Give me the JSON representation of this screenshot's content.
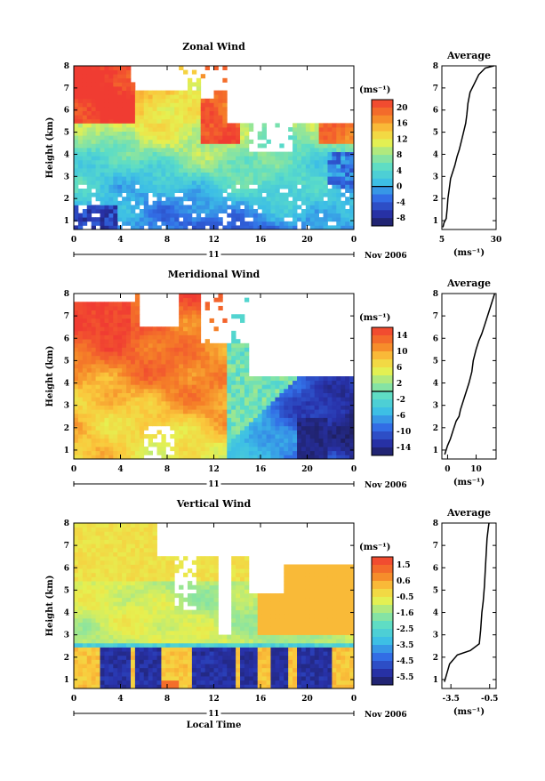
{
  "chart_data": [
    {
      "type": "heatmap",
      "title": "Zonal Wind",
      "ylabel": "Height (km)",
      "xticks": [
        "0",
        "4",
        "8",
        "12",
        "16",
        "20",
        "0"
      ],
      "yticks": [
        "1",
        "2",
        "3",
        "4",
        "5",
        "6",
        "7",
        "8"
      ],
      "ylim": [
        0.6,
        8
      ],
      "xlim": [
        0,
        24
      ],
      "date_day": "11",
      "date_label": "Nov 2006",
      "colorbar": {
        "unit": "(ms⁻¹)",
        "ticks": [
          "20",
          "16",
          "12",
          "8",
          "4",
          "0",
          "-4",
          "-8"
        ],
        "vmin": -10,
        "vmax": 22,
        "zero_line": 0
      },
      "profile": {
        "title": "Average",
        "xlabel": "(ms⁻¹)",
        "xticks": [
          "5",
          "30"
        ],
        "xlim": [
          5,
          30
        ],
        "ylim": [
          0.6,
          8
        ],
        "yticks": [
          "1",
          "2",
          "3",
          "4",
          "5",
          "6",
          "7",
          "8"
        ],
        "points": [
          [
            5.5,
            0.7
          ],
          [
            6,
            0.9
          ],
          [
            7,
            1.1
          ],
          [
            7.5,
            1.6
          ],
          [
            7.8,
            2.0
          ],
          [
            8.5,
            2.5
          ],
          [
            9,
            2.9
          ],
          [
            10,
            3.2
          ],
          [
            11,
            3.5
          ],
          [
            12,
            3.9
          ],
          [
            13,
            4.2
          ],
          [
            14,
            4.6
          ],
          [
            15,
            5.0
          ],
          [
            16,
            5.4
          ],
          [
            16.5,
            5.8
          ],
          [
            17,
            6.3
          ],
          [
            18,
            6.8
          ],
          [
            20,
            7.2
          ],
          [
            22,
            7.6
          ],
          [
            25,
            7.9
          ],
          [
            29,
            8.0
          ]
        ]
      }
    },
    {
      "type": "heatmap",
      "title": "Meridional Wind",
      "ylabel": "Height (km)",
      "xticks": [
        "0",
        "4",
        "8",
        "12",
        "16",
        "20",
        "0"
      ],
      "yticks": [
        "1",
        "2",
        "3",
        "4",
        "5",
        "6",
        "7",
        "8"
      ],
      "ylim": [
        0.6,
        8
      ],
      "xlim": [
        0,
        24
      ],
      "date_day": "11",
      "date_label": "Nov 2006",
      "colorbar": {
        "unit": "(ms⁻¹)",
        "ticks": [
          "14",
          "10",
          "6",
          "2",
          "-2",
          "-6",
          "-10",
          "-14"
        ],
        "vmin": -16,
        "vmax": 16,
        "zero_line": 0
      },
      "profile": {
        "title": "Average",
        "xlabel": "(ms⁻¹)",
        "xticks": [
          "0",
          "10"
        ],
        "xlim": [
          -2,
          17
        ],
        "ylim": [
          0.6,
          8
        ],
        "yticks": [
          "1",
          "2",
          "3",
          "4",
          "5",
          "6",
          "7",
          "8"
        ],
        "points": [
          [
            -1,
            0.8
          ],
          [
            0,
            1.2
          ],
          [
            1,
            1.5
          ],
          [
            2,
            1.9
          ],
          [
            3,
            2.3
          ],
          [
            4,
            2.5
          ],
          [
            4.5,
            2.8
          ],
          [
            5.5,
            3.2
          ],
          [
            6.5,
            3.6
          ],
          [
            7.5,
            4.0
          ],
          [
            8.5,
            4.5
          ],
          [
            9,
            5.0
          ],
          [
            10,
            5.5
          ],
          [
            11,
            5.9
          ],
          [
            12,
            6.2
          ],
          [
            13,
            6.6
          ],
          [
            14,
            7.0
          ],
          [
            15,
            7.4
          ],
          [
            16,
            7.8
          ],
          [
            16.5,
            8.0
          ]
        ]
      }
    },
    {
      "type": "heatmap",
      "title": "Vertical Wind",
      "ylabel": "Height (km)",
      "xlabel": "Local Time",
      "xticks": [
        "0",
        "4",
        "8",
        "12",
        "16",
        "20",
        "0"
      ],
      "yticks": [
        "1",
        "2",
        "3",
        "4",
        "5",
        "6",
        "7",
        "8"
      ],
      "ylim": [
        0.6,
        8
      ],
      "xlim": [
        0,
        24
      ],
      "date_day": "11",
      "date_label": "Nov 2006",
      "colorbar": {
        "unit": "(ms⁻¹)",
        "ticks": [
          "1.5",
          "0.6",
          "-0.5",
          "-1.6",
          "-2.5",
          "-3.5",
          "-4.5",
          "-5.5"
        ],
        "vmin": -6,
        "vmax": 2,
        "zero_line": null
      },
      "profile": {
        "title": "Average",
        "xlabel": "(ms⁻¹)",
        "xticks": [
          "-3.5",
          "-0.5"
        ],
        "xlim": [
          -4.2,
          0
        ],
        "ylim": [
          0.6,
          8
        ],
        "yticks": [
          "1",
          "2",
          "3",
          "4",
          "5",
          "6",
          "7",
          "8"
        ],
        "points": [
          [
            -4.0,
            0.9
          ],
          [
            -3.8,
            1.3
          ],
          [
            -3.6,
            1.7
          ],
          [
            -3.0,
            2.1
          ],
          [
            -2.0,
            2.3
          ],
          [
            -1.3,
            2.6
          ],
          [
            -1.2,
            3.2
          ],
          [
            -1.1,
            4.0
          ],
          [
            -1.0,
            4.5
          ],
          [
            -0.9,
            5.2
          ],
          [
            -0.85,
            5.8
          ],
          [
            -0.8,
            6.3
          ],
          [
            -0.75,
            6.8
          ],
          [
            -0.7,
            7.3
          ],
          [
            -0.6,
            7.8
          ],
          [
            -0.55,
            8.0
          ]
        ]
      }
    }
  ]
}
